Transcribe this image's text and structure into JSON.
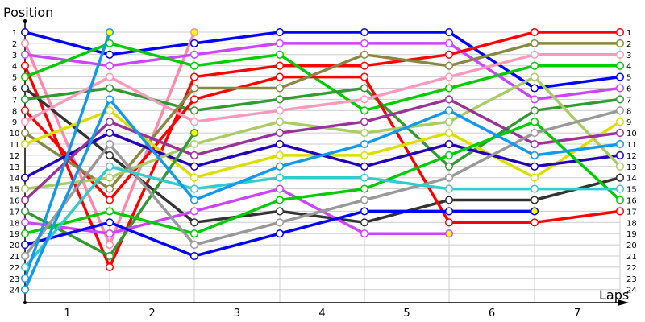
{
  "chart_data": {
    "type": "line",
    "title": "",
    "ylabel": "Position",
    "xlabel": "Laps",
    "x_categories": [
      "1",
      "2",
      "3",
      "4",
      "5",
      "6",
      "7"
    ],
    "y_ticks": [
      1,
      2,
      3,
      4,
      5,
      6,
      7,
      8,
      9,
      10,
      11,
      12,
      13,
      14,
      15,
      16,
      17,
      18,
      19,
      20,
      21,
      22,
      23,
      24
    ],
    "ylim": [
      1,
      24
    ],
    "y_inverted": true,
    "grid": true,
    "x": [
      0,
      1,
      2,
      3,
      4,
      5,
      6,
      7
    ],
    "series": [
      {
        "name": "blue",
        "color": "#0000ff",
        "values": [
          1,
          3,
          2,
          1,
          1,
          1,
          6,
          5
        ]
      },
      {
        "name": "pink",
        "color": "#ff88aa",
        "values": [
          2,
          20,
          1,
          null,
          null,
          null,
          null,
          null
        ]
      },
      {
        "name": "violet",
        "color": "#cc44ff",
        "values": [
          3,
          4,
          3,
          2,
          2,
          2,
          7,
          6
        ]
      },
      {
        "name": "red",
        "color": "#ff0000",
        "values": [
          4,
          22,
          5,
          4,
          4,
          3,
          1,
          1
        ]
      },
      {
        "name": "green",
        "color": "#00cc00",
        "values": [
          5,
          2,
          4,
          3,
          8,
          6,
          4,
          4
        ]
      },
      {
        "name": "black",
        "color": "#333333",
        "values": [
          6,
          12,
          18,
          17,
          18,
          16,
          16,
          14
        ]
      },
      {
        "name": "dark-green",
        "color": "#339933",
        "values": [
          7,
          6,
          8,
          7,
          6,
          13,
          8,
          7
        ]
      },
      {
        "name": "red-2",
        "color": "#ff0000",
        "values": [
          8,
          16,
          7,
          5,
          5,
          18,
          18,
          17
        ]
      },
      {
        "name": "light-pink",
        "color": "#ff99bb",
        "values": [
          9,
          5,
          9,
          8,
          7,
          5,
          3,
          3
        ]
      },
      {
        "name": "olive",
        "color": "#888844",
        "values": [
          10,
          15,
          6,
          6,
          3,
          4,
          2,
          2
        ]
      },
      {
        "name": "yellow",
        "color": "#dddd00",
        "values": [
          11,
          8,
          14,
          12,
          12,
          10,
          14,
          9
        ]
      },
      {
        "name": "navy",
        "color": "#2200bb",
        "values": [
          14,
          10,
          13,
          11,
          13,
          11,
          13,
          12
        ]
      },
      {
        "name": "light-green",
        "color": "#aacc66",
        "values": [
          15,
          14,
          11,
          9,
          10,
          9,
          5,
          13
        ]
      },
      {
        "name": "purple",
        "color": "#993399",
        "values": [
          16,
          9,
          12,
          10,
          9,
          7,
          11,
          10
        ]
      },
      {
        "name": "dark-green-2",
        "color": "#339933",
        "values": [
          17,
          21,
          10,
          null,
          null,
          null,
          null,
          null
        ]
      },
      {
        "name": "violet-2",
        "color": "#cc44ff",
        "values": [
          18,
          19,
          17,
          15,
          19,
          19,
          null,
          null
        ]
      },
      {
        "name": "green-2",
        "color": "#00cc00",
        "values": [
          19,
          17,
          19,
          16,
          15,
          12,
          9,
          16
        ]
      },
      {
        "name": "blue-2",
        "color": "#0000ff",
        "values": [
          20,
          18,
          21,
          19,
          17,
          17,
          17,
          null
        ]
      },
      {
        "name": "gray",
        "color": "#999999",
        "values": [
          21,
          11,
          20,
          18,
          16,
          14,
          10,
          8
        ]
      },
      {
        "name": "cyan",
        "color": "#33cccc",
        "values": [
          22,
          13,
          15,
          14,
          14,
          15,
          15,
          15
        ]
      },
      {
        "name": "sky-blue",
        "color": "#1199ee",
        "values": [
          23,
          1,
          null,
          null,
          null,
          null,
          null,
          null
        ]
      },
      {
        "name": "sky-blue-2",
        "color": "#1199ee",
        "values": [
          24,
          7,
          16,
          13,
          11,
          8,
          12,
          11
        ]
      }
    ],
    "retired_marker_color": "#ffff00"
  }
}
